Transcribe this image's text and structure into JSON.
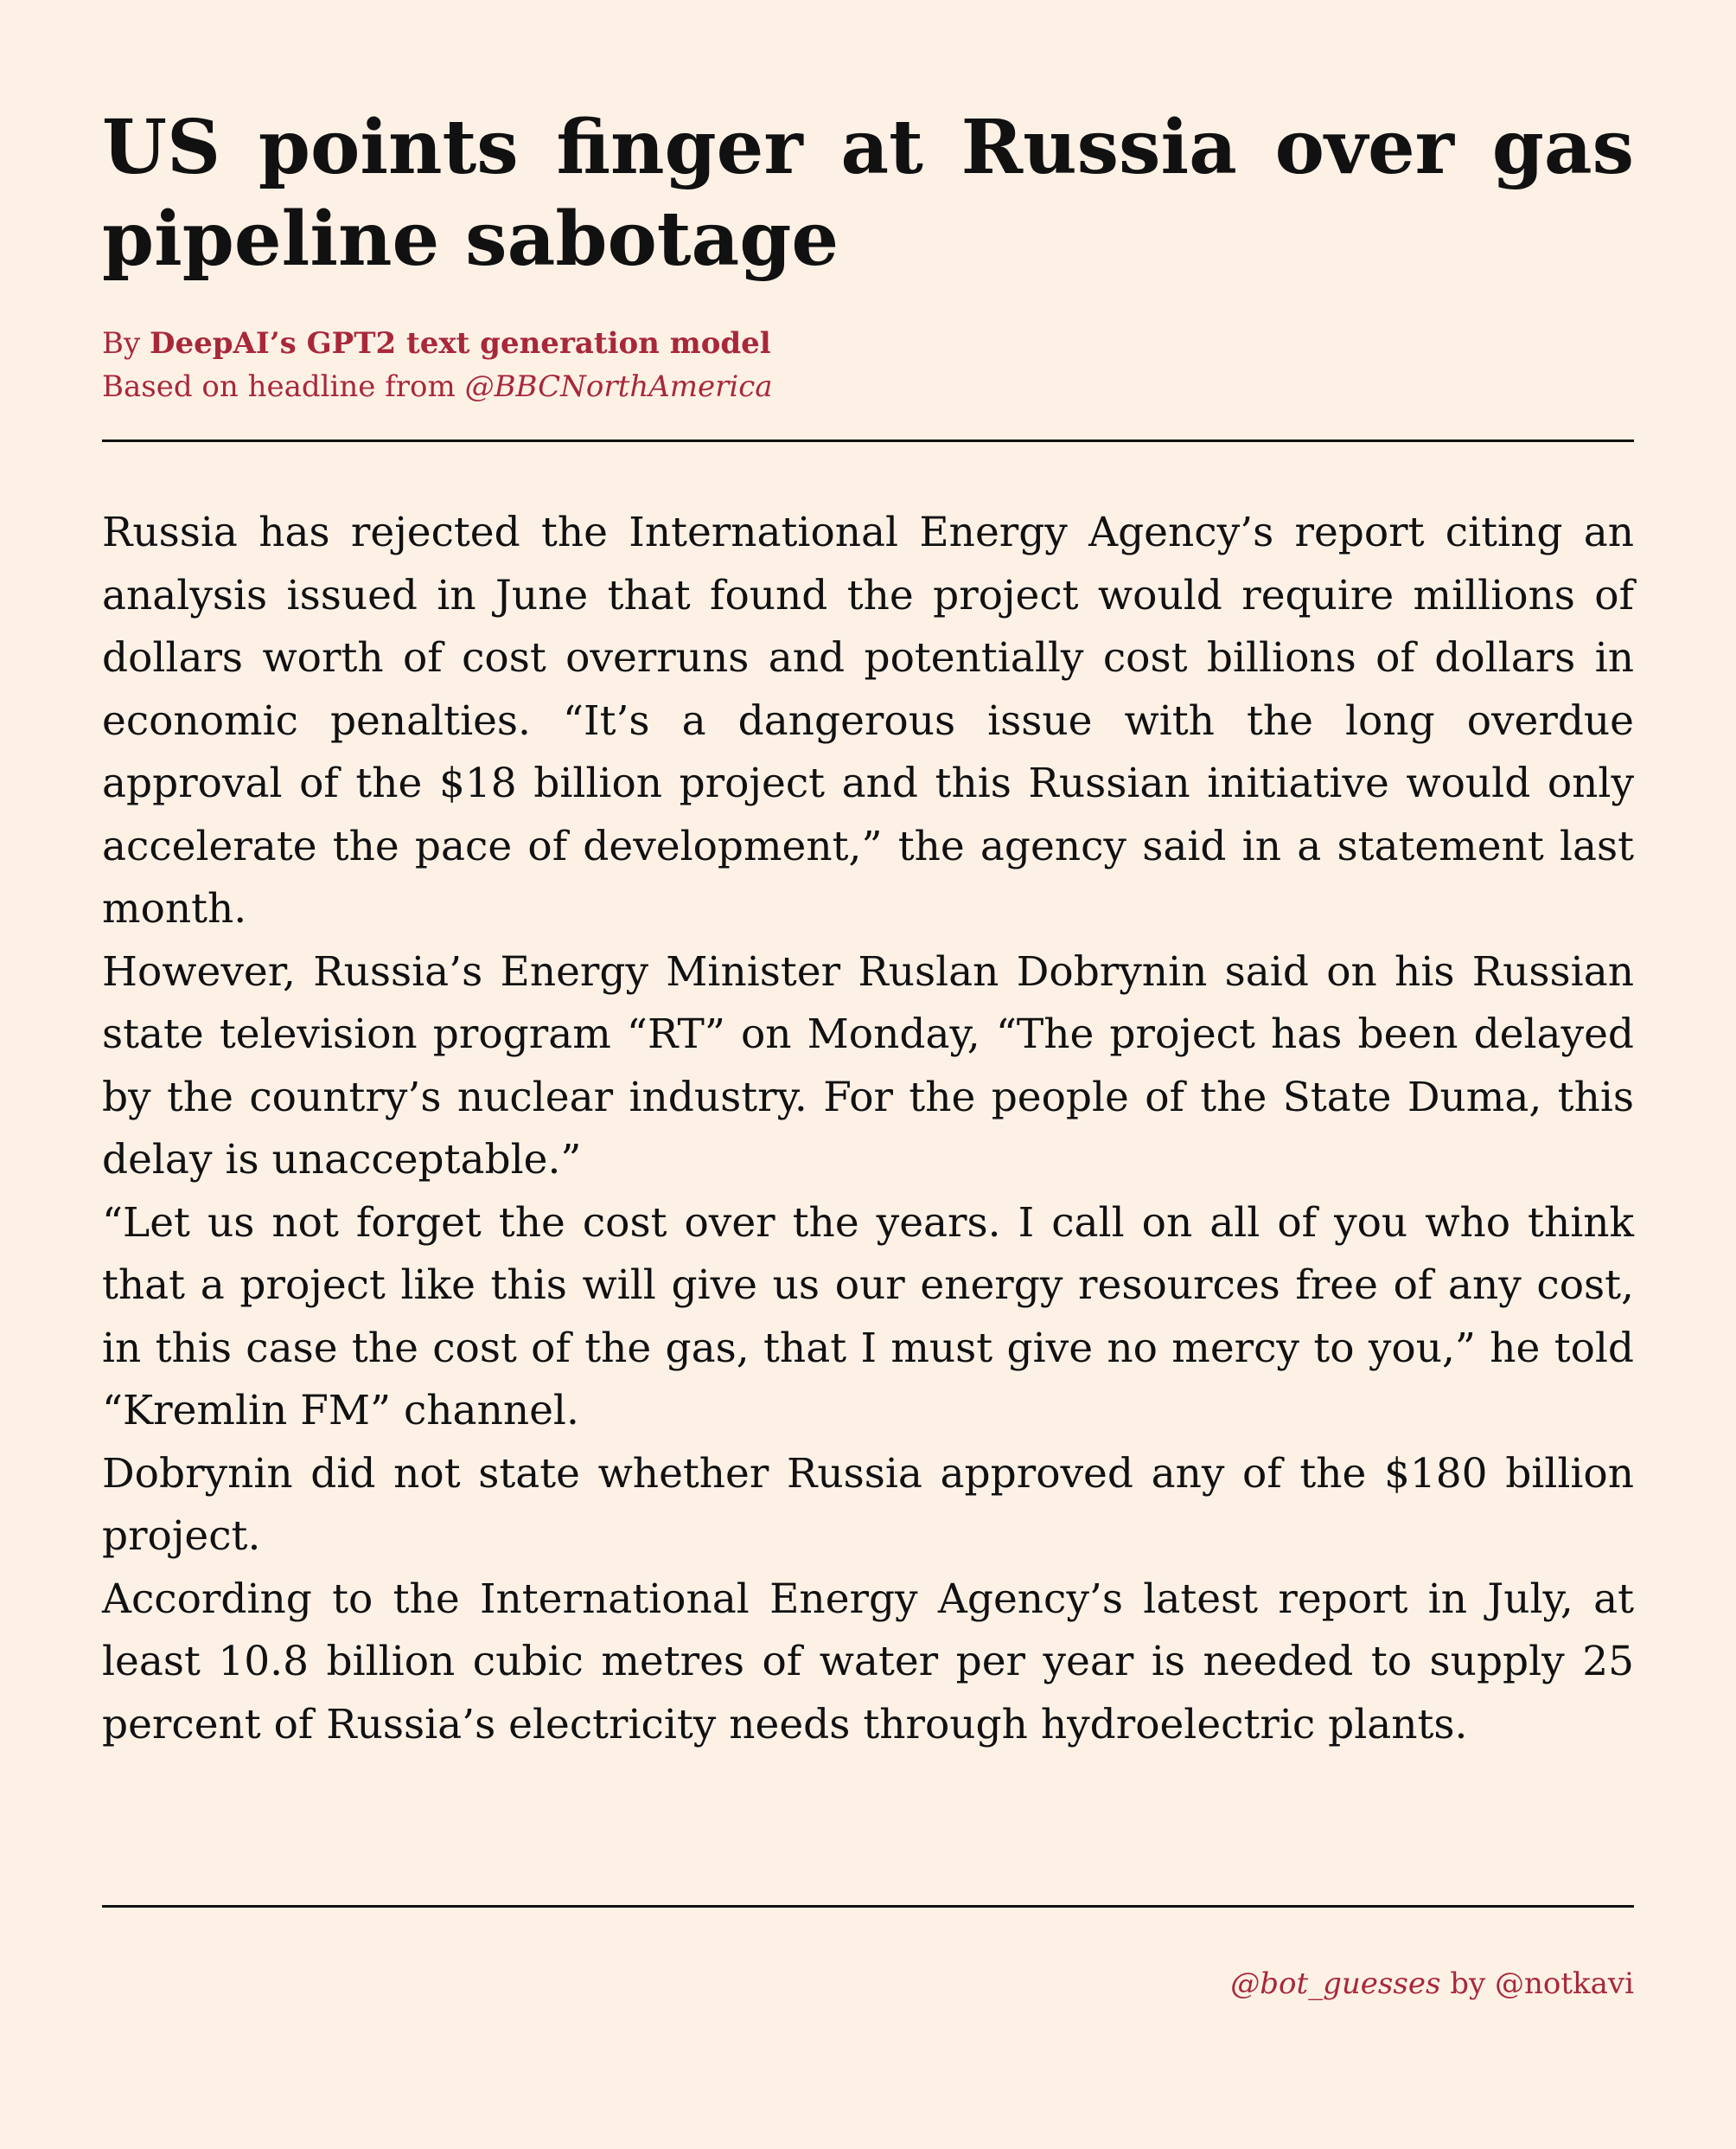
{
  "article": {
    "headline": "US points finger at Russia over gas pipeline sabotage",
    "byline_prefix": "By ",
    "byline_author": "DeepAI’s GPT2 text generation model",
    "based_on_prefix": "Based on headline from ",
    "based_on_handle": "@BBCNorthAmerica",
    "paragraphs": [
      "Russia has rejected the International Energy Agency’s report citing an analysis issued in June that found the project would require millions of dollars worth of cost overruns and potentially cost billions of dollars in economic penalties.  “It’s a dangerous issue with the long overdue approval of the $18 billion project and this Russian initiative would only accelerate the pace of development,” the agency said in a statement last month.",
      "However, Russia’s Energy Minister Ruslan Dobrynin said on his Russian state television program “RT” on Monday, “The project has been delayed by the country’s nuclear industry. For the people of the State Duma, this delay is unacceptable.”",
      "“Let us not forget the cost over the years.  I call on all of you who think that a project like this will give us our energy resources free of any cost, in this case the cost of the gas, that I must give no mercy to you,” he told “Kremlin FM” channel.",
      "Dobrynin did not state whether Russia approved any of the $180 billion project.",
      "According to the International Energy Agency’s latest report in July, at least 10.8 billion cubic metres of water per year is needed to supply 25 percent of Russia’s electricity needs through hydroelectric plants."
    ]
  },
  "footer": {
    "bot_handle": "@bot_guesses",
    "by_text": " by ",
    "author_handle": "@notkavi"
  },
  "colors": {
    "background": "#fdf1e6",
    "accent": "#a8283a",
    "text": "#111111"
  }
}
